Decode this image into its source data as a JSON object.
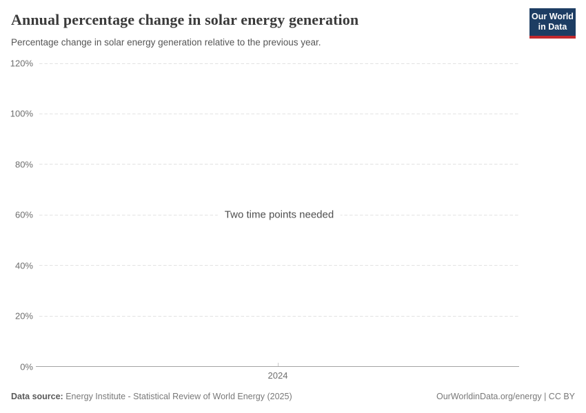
{
  "header": {
    "title": "Annual percentage change in solar energy generation",
    "subtitle": "Percentage change in solar energy generation relative to the previous year.",
    "logo": {
      "line1": "Our World",
      "line2": "in Data",
      "bg_color": "#1d3d63",
      "accent_color": "#c2292d"
    }
  },
  "chart_data": {
    "type": "line",
    "title": "Annual percentage change in solar energy generation",
    "subtitle": "Percentage change in solar energy generation relative to the previous year.",
    "series": [],
    "message": "Two time points needed",
    "xlabel": "",
    "ylabel": "",
    "ylim": [
      0,
      120
    ],
    "yticks": [
      120,
      100,
      80,
      60,
      40,
      20,
      0
    ],
    "ytick_suffix": "%",
    "xticks": [
      "2024"
    ],
    "grid": true,
    "legend": "none",
    "gridline_color": "#e2e2e2",
    "zero_line_color": "#a2a2a2"
  },
  "footer": {
    "datasource_label": "Data source:",
    "datasource_value": "Energy Institute - Statistical Review of World Energy (2025)",
    "url_text": "OurWorldinData.org/energy | CC BY"
  }
}
